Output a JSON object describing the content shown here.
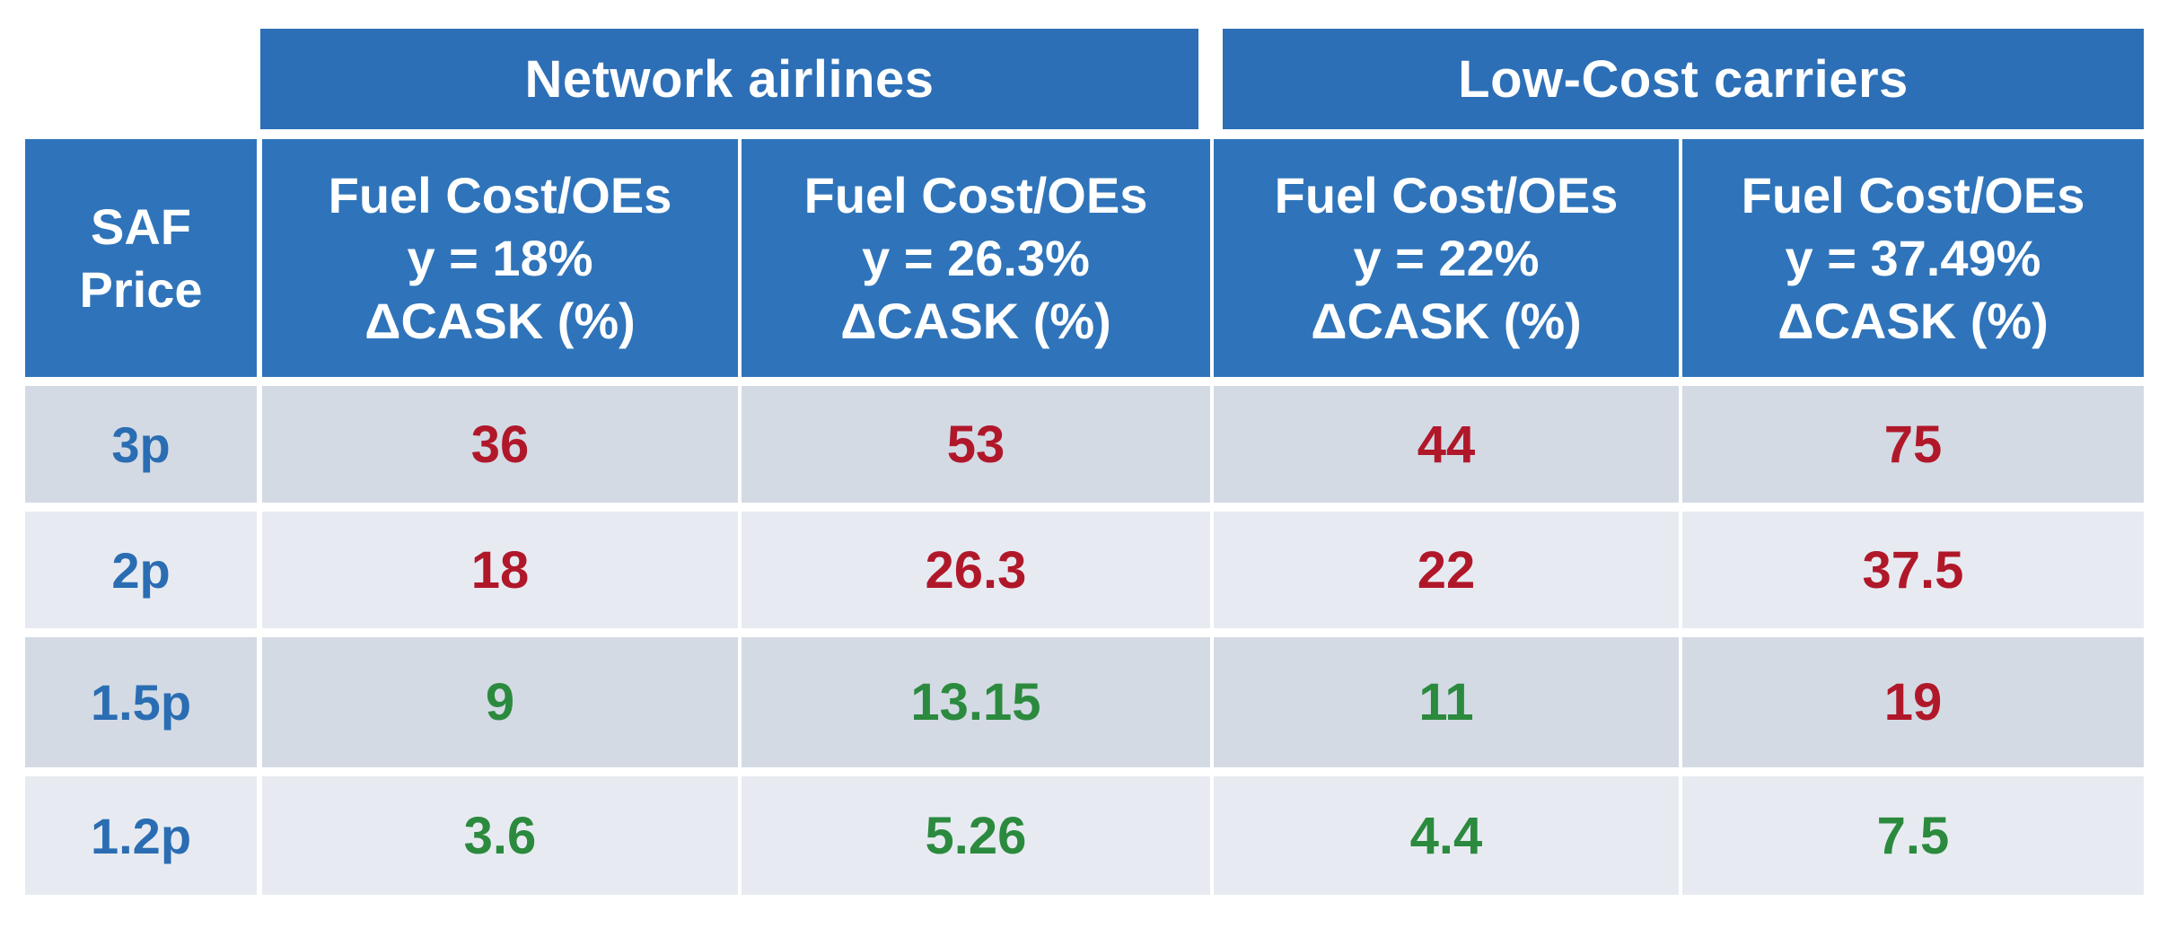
{
  "chart_data": {
    "type": "table",
    "groups": [
      "Network airlines",
      "Low-Cost carriers"
    ],
    "row_header_label_line1": "SAF",
    "row_header_label_line2": "Price",
    "columns": [
      {
        "group": "Network airlines",
        "line1": "Fuel Cost/OEs",
        "line2": "y = 18%",
        "line3": "ΔCASK (%)"
      },
      {
        "group": "Network airlines",
        "line1": "Fuel Cost/OEs",
        "line2": "y = 26.3%",
        "line3": "ΔCASK (%)"
      },
      {
        "group": "Low-Cost carriers",
        "line1": "Fuel Cost/OEs",
        "line2": "y = 22%",
        "line3": "ΔCASK (%)"
      },
      {
        "group": "Low-Cost carriers",
        "line1": "Fuel Cost/OEs",
        "line2": "y = 37.49%",
        "line3": "ΔCASK (%)"
      }
    ],
    "rows": [
      {
        "label": "3p",
        "values": [
          "36",
          "53",
          "44",
          "75"
        ],
        "colors": [
          "red",
          "red",
          "red",
          "red"
        ]
      },
      {
        "label": "2p",
        "values": [
          "18",
          "26.3",
          "22",
          "37.5"
        ],
        "colors": [
          "red",
          "red",
          "red",
          "red"
        ]
      },
      {
        "label": "1.5p",
        "values": [
          "9",
          "13.15",
          "11",
          "19"
        ],
        "colors": [
          "green",
          "green",
          "green",
          "red"
        ]
      },
      {
        "label": "1.2p",
        "values": [
          "3.6",
          "5.26",
          "4.4",
          "7.5"
        ],
        "colors": [
          "green",
          "green",
          "green",
          "green"
        ]
      }
    ]
  },
  "colors": {
    "header_blue": "#2c6fb7",
    "row_label_blue": "#2a6db3",
    "value_red": "#b0182a",
    "value_green": "#2b8a3e",
    "row_dark": "#d3dae4",
    "row_light": "#e7ebf1"
  }
}
